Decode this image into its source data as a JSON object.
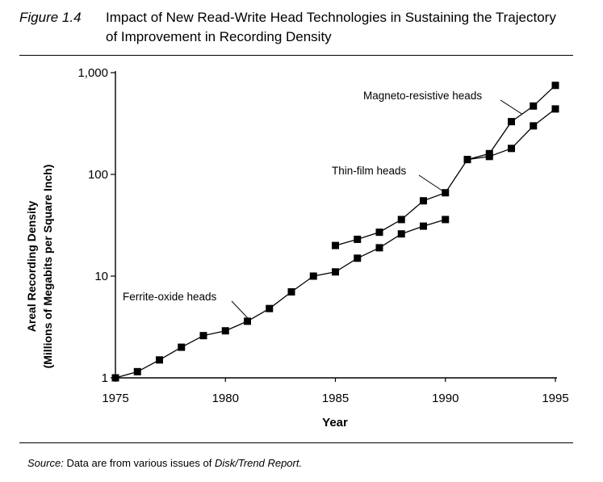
{
  "figure": {
    "label": "Figure 1.4",
    "title": "Impact of New Read-Write Head Technologies in Sustaining the Trajectory of Improvement in Recording Density"
  },
  "source": {
    "label": "Source:",
    "text": "Data are from various issues of",
    "publication": "Disk/Trend Report."
  },
  "chart_data": {
    "type": "line",
    "title": "",
    "xlabel": "Year",
    "ylabel": "Areal Recording Density (Millions of Megabits per Square Inch)",
    "ylabel_lines": [
      "Areal Recording Density",
      "(Millions of Megabits per Square Inch)"
    ],
    "y_scale": "log",
    "xlim": [
      1975,
      1995
    ],
    "ylim": [
      1,
      1000
    ],
    "x_ticks": [
      1975,
      1980,
      1985,
      1990,
      1995
    ],
    "x_tick_labels": [
      "1975",
      "1980",
      "1985",
      "1990",
      "1995"
    ],
    "y_ticks": [
      1,
      10,
      100,
      1000
    ],
    "y_tick_labels": [
      "1",
      "10",
      "100",
      "1,000"
    ],
    "grid": false,
    "legend": "none",
    "series": [
      {
        "name": "Ferrite-oxide heads",
        "x": [
          1975,
          1976,
          1977,
          1978,
          1979,
          1980,
          1981,
          1982,
          1983,
          1984,
          1985,
          1986,
          1987,
          1988,
          1989,
          1990
        ],
        "y": [
          1,
          1.15,
          1.5,
          2.0,
          2.6,
          2.9,
          3.6,
          4.8,
          7,
          10,
          11,
          15,
          19,
          26,
          31,
          36
        ]
      },
      {
        "name": "Thin-film heads",
        "x": [
          1985,
          1986,
          1987,
          1988,
          1989,
          1990,
          1991,
          1992,
          1993,
          1994,
          1995
        ],
        "y": [
          20,
          23,
          27,
          36,
          55,
          66,
          140,
          150,
          180,
          300,
          440
        ]
      },
      {
        "name": "Magneto-resistive heads",
        "x": [
          1991,
          1992,
          1993,
          1994,
          1995
        ],
        "y": [
          140,
          160,
          330,
          470,
          750
        ]
      }
    ],
    "annotations": [
      {
        "text": "Ferrite-oxide heads",
        "series": 0
      },
      {
        "text": "Thin-film heads",
        "series": 1
      },
      {
        "text": "Magneto-resistive heads",
        "series": 2
      }
    ],
    "colors": {
      "line": "#000000",
      "marker": "#000000"
    }
  }
}
